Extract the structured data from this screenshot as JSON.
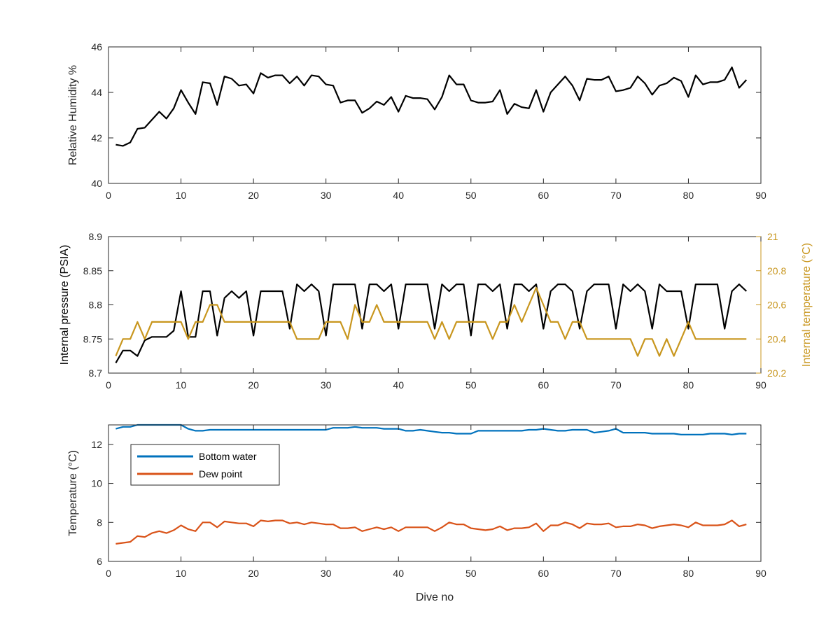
{
  "colors": {
    "black": "#000000",
    "blue": "#0072BD",
    "orange": "#D95319",
    "gold": "#C8961E",
    "axis": "#262626"
  },
  "chart_data": [
    {
      "type": "line",
      "xlim": [
        0,
        90
      ],
      "ylim": [
        40,
        46
      ],
      "xticks": [
        "0",
        "10",
        "20",
        "30",
        "40",
        "50",
        "60",
        "70",
        "80",
        "90"
      ],
      "yticks": [
        "40",
        "42",
        "44",
        "46"
      ],
      "xlabel": "",
      "ylabel": "Relative Humidity %",
      "grid": false,
      "series": [
        {
          "color": "#000000",
          "x": [
            1,
            2,
            3,
            4,
            5,
            6,
            7,
            8,
            9,
            10,
            11,
            12,
            13,
            14,
            15,
            16,
            17,
            18,
            19,
            20,
            21,
            22,
            23,
            24,
            25,
            26,
            27,
            28,
            29,
            30,
            31,
            32,
            33,
            34,
            35,
            36,
            37,
            38,
            39,
            40,
            41,
            42,
            43,
            44,
            45,
            46,
            47,
            48,
            49,
            50,
            51,
            52,
            53,
            54,
            55,
            56,
            57,
            58,
            59,
            60,
            61,
            62,
            63,
            64,
            65,
            66,
            67,
            68,
            69,
            70,
            71,
            72,
            73,
            74,
            75,
            76,
            77,
            78,
            79,
            80,
            81,
            82,
            83,
            84,
            85,
            86,
            87,
            88
          ],
          "y": [
            41.7,
            41.65,
            41.8,
            42.4,
            42.45,
            42.8,
            43.15,
            42.85,
            43.3,
            44.1,
            43.55,
            43.05,
            44.45,
            44.4,
            43.45,
            44.7,
            44.6,
            44.3,
            44.35,
            43.95,
            44.85,
            44.65,
            44.75,
            44.75,
            44.4,
            44.7,
            44.3,
            44.75,
            44.7,
            44.35,
            44.3,
            43.55,
            43.65,
            43.65,
            43.1,
            43.3,
            43.6,
            43.45,
            43.8,
            43.15,
            43.85,
            43.75,
            43.75,
            43.7,
            43.25,
            43.8,
            44.75,
            44.35,
            44.35,
            43.65,
            43.55,
            43.55,
            43.6,
            44.1,
            43.05,
            43.5,
            43.35,
            43.3,
            44.1,
            43.15,
            44.0,
            44.35,
            44.7,
            44.3,
            43.65,
            44.6,
            44.55,
            44.55,
            44.7,
            44.05,
            44.1,
            44.2,
            44.7,
            44.4,
            43.9,
            44.3,
            44.4,
            44.65,
            44.5,
            43.8,
            44.75,
            44.35,
            44.45,
            44.45,
            44.55,
            45.1,
            44.2,
            44.55
          ]
        }
      ]
    },
    {
      "type": "line",
      "xlim": [
        0,
        90
      ],
      "ylim": [
        8.7,
        8.9
      ],
      "y2lim": [
        20.2,
        21.0
      ],
      "xticks": [
        "0",
        "10",
        "20",
        "30",
        "40",
        "50",
        "60",
        "70",
        "80",
        "90"
      ],
      "yticks": [
        "8.7",
        "8.75",
        "8.8",
        "8.85",
        "8.9"
      ],
      "y2ticks": [
        "20.2",
        "20.4",
        "20.6",
        "20.8",
        "21"
      ],
      "xlabel": "",
      "ylabel": "Internal pressure (PSIA)",
      "y2label": "Internal temperature (°C)",
      "grid": false,
      "series": [
        {
          "axis": "left",
          "color": "#000000",
          "x": [
            1,
            2,
            3,
            4,
            5,
            6,
            7,
            8,
            9,
            10,
            11,
            12,
            13,
            14,
            15,
            16,
            17,
            18,
            19,
            20,
            21,
            22,
            23,
            24,
            25,
            26,
            27,
            28,
            29,
            30,
            31,
            32,
            33,
            34,
            35,
            36,
            37,
            38,
            39,
            40,
            41,
            42,
            43,
            44,
            45,
            46,
            47,
            48,
            49,
            50,
            51,
            52,
            53,
            54,
            55,
            56,
            57,
            58,
            59,
            60,
            61,
            62,
            63,
            64,
            65,
            66,
            67,
            68,
            69,
            70,
            71,
            72,
            73,
            74,
            75,
            76,
            77,
            78,
            79,
            80,
            81,
            82,
            83,
            84,
            85,
            86,
            87,
            88
          ],
          "y": [
            8.715,
            8.733,
            8.733,
            8.725,
            8.748,
            8.753,
            8.753,
            8.753,
            8.762,
            8.82,
            8.753,
            8.753,
            8.82,
            8.82,
            8.755,
            8.81,
            8.82,
            8.81,
            8.82,
            8.755,
            8.82,
            8.82,
            8.82,
            8.82,
            8.765,
            8.83,
            8.82,
            8.83,
            8.82,
            8.755,
            8.83,
            8.83,
            8.83,
            8.83,
            8.765,
            8.83,
            8.83,
            8.82,
            8.83,
            8.765,
            8.83,
            8.83,
            8.83,
            8.83,
            8.765,
            8.83,
            8.82,
            8.83,
            8.83,
            8.755,
            8.83,
            8.83,
            8.82,
            8.83,
            8.765,
            8.83,
            8.83,
            8.82,
            8.83,
            8.765,
            8.82,
            8.83,
            8.83,
            8.82,
            8.765,
            8.82,
            8.83,
            8.83,
            8.83,
            8.765,
            8.83,
            8.82,
            8.83,
            8.82,
            8.765,
            8.83,
            8.82,
            8.82,
            8.82,
            8.765,
            8.83,
            8.83,
            8.83,
            8.83,
            8.765,
            8.82,
            8.83,
            8.82
          ]
        },
        {
          "axis": "right",
          "color": "#C8961E",
          "x": [
            1,
            2,
            3,
            4,
            5,
            6,
            7,
            8,
            9,
            10,
            11,
            12,
            13,
            14,
            15,
            16,
            17,
            18,
            19,
            20,
            21,
            22,
            23,
            24,
            25,
            26,
            27,
            28,
            29,
            30,
            31,
            32,
            33,
            34,
            35,
            36,
            37,
            38,
            39,
            40,
            41,
            42,
            43,
            44,
            45,
            46,
            47,
            48,
            49,
            50,
            51,
            52,
            53,
            54,
            55,
            56,
            57,
            58,
            59,
            60,
            61,
            62,
            63,
            64,
            65,
            66,
            67,
            68,
            69,
            70,
            71,
            72,
            73,
            74,
            75,
            76,
            77,
            78,
            79,
            80,
            81,
            82,
            83,
            84,
            85,
            86,
            87,
            88
          ],
          "y": [
            20.3,
            20.4,
            20.4,
            20.5,
            20.4,
            20.5,
            20.5,
            20.5,
            20.5,
            20.5,
            20.4,
            20.5,
            20.5,
            20.6,
            20.6,
            20.5,
            20.5,
            20.5,
            20.5,
            20.5,
            20.5,
            20.5,
            20.5,
            20.5,
            20.5,
            20.4,
            20.4,
            20.4,
            20.4,
            20.5,
            20.5,
            20.5,
            20.4,
            20.6,
            20.5,
            20.5,
            20.6,
            20.5,
            20.5,
            20.5,
            20.5,
            20.5,
            20.5,
            20.5,
            20.4,
            20.5,
            20.4,
            20.5,
            20.5,
            20.5,
            20.5,
            20.5,
            20.4,
            20.5,
            20.5,
            20.6,
            20.5,
            20.6,
            20.7,
            20.6,
            20.5,
            20.5,
            20.4,
            20.5,
            20.5,
            20.4,
            20.4,
            20.4,
            20.4,
            20.4,
            20.4,
            20.4,
            20.3,
            20.4,
            20.4,
            20.3,
            20.4,
            20.3,
            20.4,
            20.5,
            20.4,
            20.4,
            20.4,
            20.4,
            20.4,
            20.4,
            20.4,
            20.4
          ]
        }
      ]
    },
    {
      "type": "line",
      "xlim": [
        0,
        90
      ],
      "ylim": [
        6,
        13
      ],
      "xticks": [
        "0",
        "10",
        "20",
        "30",
        "40",
        "50",
        "60",
        "70",
        "80",
        "90"
      ],
      "yticks": [
        "6",
        "8",
        "10",
        "12"
      ],
      "xlabel": "Dive no",
      "ylabel": "Temperature (°C)",
      "grid": false,
      "legend": "top-left",
      "series": [
        {
          "name": "Bottom water",
          "color": "#0072BD",
          "x": [
            1,
            2,
            3,
            4,
            5,
            6,
            7,
            8,
            9,
            10,
            11,
            12,
            13,
            14,
            15,
            16,
            17,
            18,
            19,
            20,
            21,
            22,
            23,
            24,
            25,
            26,
            27,
            28,
            29,
            30,
            31,
            32,
            33,
            34,
            35,
            36,
            37,
            38,
            39,
            40,
            41,
            42,
            43,
            44,
            45,
            46,
            47,
            48,
            49,
            50,
            51,
            52,
            53,
            54,
            55,
            56,
            57,
            58,
            59,
            60,
            61,
            62,
            63,
            64,
            65,
            66,
            67,
            68,
            69,
            70,
            71,
            72,
            73,
            74,
            75,
            76,
            77,
            78,
            79,
            80,
            81,
            82,
            83,
            84,
            85,
            86,
            87,
            88
          ],
          "y": [
            12.8,
            12.9,
            12.9,
            13.0,
            13.0,
            13.0,
            13.0,
            13.0,
            13.0,
            13.0,
            12.8,
            12.7,
            12.7,
            12.75,
            12.75,
            12.75,
            12.75,
            12.75,
            12.75,
            12.75,
            12.75,
            12.75,
            12.75,
            12.75,
            12.75,
            12.75,
            12.75,
            12.75,
            12.75,
            12.75,
            12.85,
            12.85,
            12.85,
            12.9,
            12.85,
            12.85,
            12.85,
            12.8,
            12.8,
            12.8,
            12.7,
            12.7,
            12.75,
            12.7,
            12.65,
            12.6,
            12.6,
            12.55,
            12.55,
            12.55,
            12.7,
            12.7,
            12.7,
            12.7,
            12.7,
            12.7,
            12.7,
            12.75,
            12.75,
            12.8,
            12.75,
            12.7,
            12.7,
            12.75,
            12.75,
            12.75,
            12.6,
            12.65,
            12.7,
            12.8,
            12.6,
            12.6,
            12.6,
            12.6,
            12.55,
            12.55,
            12.55,
            12.55,
            12.5,
            12.5,
            12.5,
            12.5,
            12.55,
            12.55,
            12.55,
            12.5,
            12.55,
            12.55
          ]
        },
        {
          "name": "Dew point",
          "color": "#D95319",
          "x": [
            1,
            2,
            3,
            4,
            5,
            6,
            7,
            8,
            9,
            10,
            11,
            12,
            13,
            14,
            15,
            16,
            17,
            18,
            19,
            20,
            21,
            22,
            23,
            24,
            25,
            26,
            27,
            28,
            29,
            30,
            31,
            32,
            33,
            34,
            35,
            36,
            37,
            38,
            39,
            40,
            41,
            42,
            43,
            44,
            45,
            46,
            47,
            48,
            49,
            50,
            51,
            52,
            53,
            54,
            55,
            56,
            57,
            58,
            59,
            60,
            61,
            62,
            63,
            64,
            65,
            66,
            67,
            68,
            69,
            70,
            71,
            72,
            73,
            74,
            75,
            76,
            77,
            78,
            79,
            80,
            81,
            82,
            83,
            84,
            85,
            86,
            87,
            88
          ],
          "y": [
            6.9,
            6.95,
            7.0,
            7.3,
            7.25,
            7.45,
            7.55,
            7.45,
            7.6,
            7.85,
            7.65,
            7.55,
            8.0,
            8.0,
            7.75,
            8.05,
            8.0,
            7.95,
            7.95,
            7.8,
            8.1,
            8.05,
            8.1,
            8.1,
            7.95,
            8.0,
            7.9,
            8.0,
            7.95,
            7.9,
            7.9,
            7.7,
            7.7,
            7.75,
            7.55,
            7.65,
            7.75,
            7.65,
            7.75,
            7.55,
            7.75,
            7.75,
            7.75,
            7.75,
            7.55,
            7.75,
            8.0,
            7.9,
            7.9,
            7.7,
            7.65,
            7.6,
            7.65,
            7.8,
            7.6,
            7.7,
            7.7,
            7.75,
            7.95,
            7.55,
            7.85,
            7.85,
            8.0,
            7.9,
            7.7,
            7.95,
            7.9,
            7.9,
            7.95,
            7.75,
            7.8,
            7.8,
            7.9,
            7.85,
            7.7,
            7.8,
            7.85,
            7.9,
            7.85,
            7.75,
            8.0,
            7.85,
            7.85,
            7.85,
            7.9,
            8.1,
            7.8,
            7.9
          ]
        }
      ]
    }
  ]
}
